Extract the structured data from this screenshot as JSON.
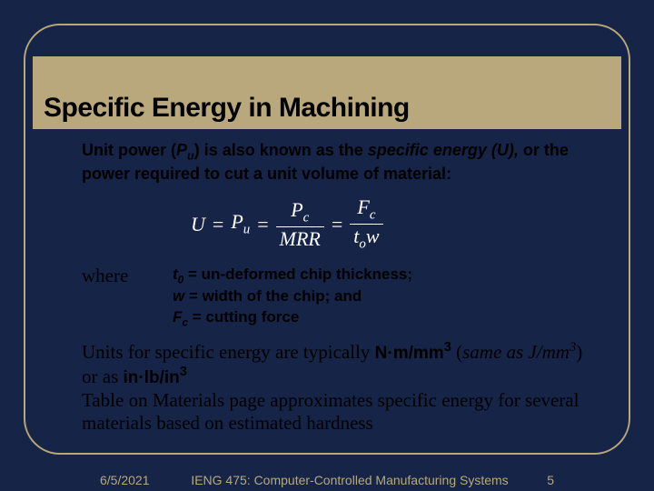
{
  "colors": {
    "background": "#152447",
    "accent": "#b9a87c",
    "text_dark": "#000000",
    "formula_text": "#ffffff"
  },
  "title": "Specific Energy in Machining",
  "para1": {
    "pre": "Unit power (",
    "var": "P",
    "var_sub": "u",
    "mid": ") is also known as the ",
    "emph": "specific energy (U),",
    "post": " or the power required to cut a unit volume of material:"
  },
  "formula": {
    "U": "U",
    "Pu": "P",
    "Pu_sub": "u",
    "Pc": "P",
    "Pc_sub": "c",
    "MRR": "MRR",
    "Fc": "F",
    "Fc_sub": "c",
    "t": "t",
    "t_sub": "o",
    "w": "w"
  },
  "where_label": "where",
  "defs": {
    "t_var": "t",
    "t_sub": "0",
    "t_text": " = un-deformed chip thickness;",
    "w_var": "w",
    "w_text": " = width of the chip; and",
    "F_var": "F",
    "F_sub": "c",
    "F_text": " = cutting force"
  },
  "para2": {
    "line1_a": "Units for specific energy are typically ",
    "unit1": "N·m/mm",
    "unit1_sup": "3",
    "line1_b": " (",
    "same_as": "same as  J/mm",
    "same_sup": "3",
    "line1_c": ") or as ",
    "unit2": "in·lb/in",
    "unit2_sup": "3",
    "line2": "Table on Materials page approximates specific energy for several materials based on estimated hardness"
  },
  "footer": {
    "date": "6/5/2021",
    "course": "IENG 475: Computer-Controlled Manufacturing Systems",
    "page": "5"
  }
}
